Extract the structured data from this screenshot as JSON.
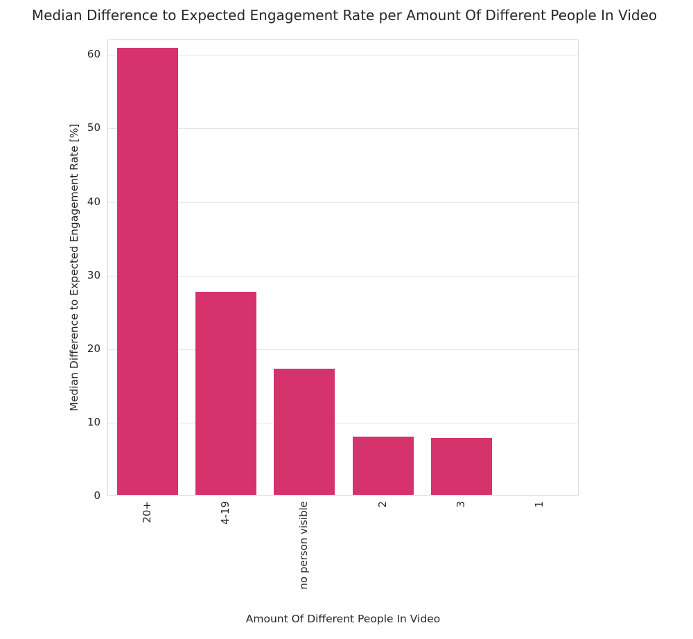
{
  "chart_data": {
    "type": "bar",
    "title": "Median Difference to Expected Engagement Rate per Amount Of Different People In Video",
    "xlabel": "Amount Of Different People In Video",
    "ylabel": "Median Difference to Expected Engagement Rate [%]",
    "categories": [
      "20+",
      "4-19",
      "no person visible",
      "2",
      "3",
      "1"
    ],
    "values": [
      60.8,
      27.6,
      17.2,
      7.9,
      7.7,
      0.0
    ],
    "ylim": [
      0,
      62
    ],
    "yticks": [
      0,
      10,
      20,
      30,
      40,
      50,
      60
    ],
    "bar_color": "#d6336c",
    "grid": true,
    "grid_color": "#e5e5e5",
    "axes_border_color": "#d6d6d6",
    "background_color": "#ffffff",
    "text_color": "#262626",
    "legend": null,
    "x_tick_rotation_deg": 90
  }
}
